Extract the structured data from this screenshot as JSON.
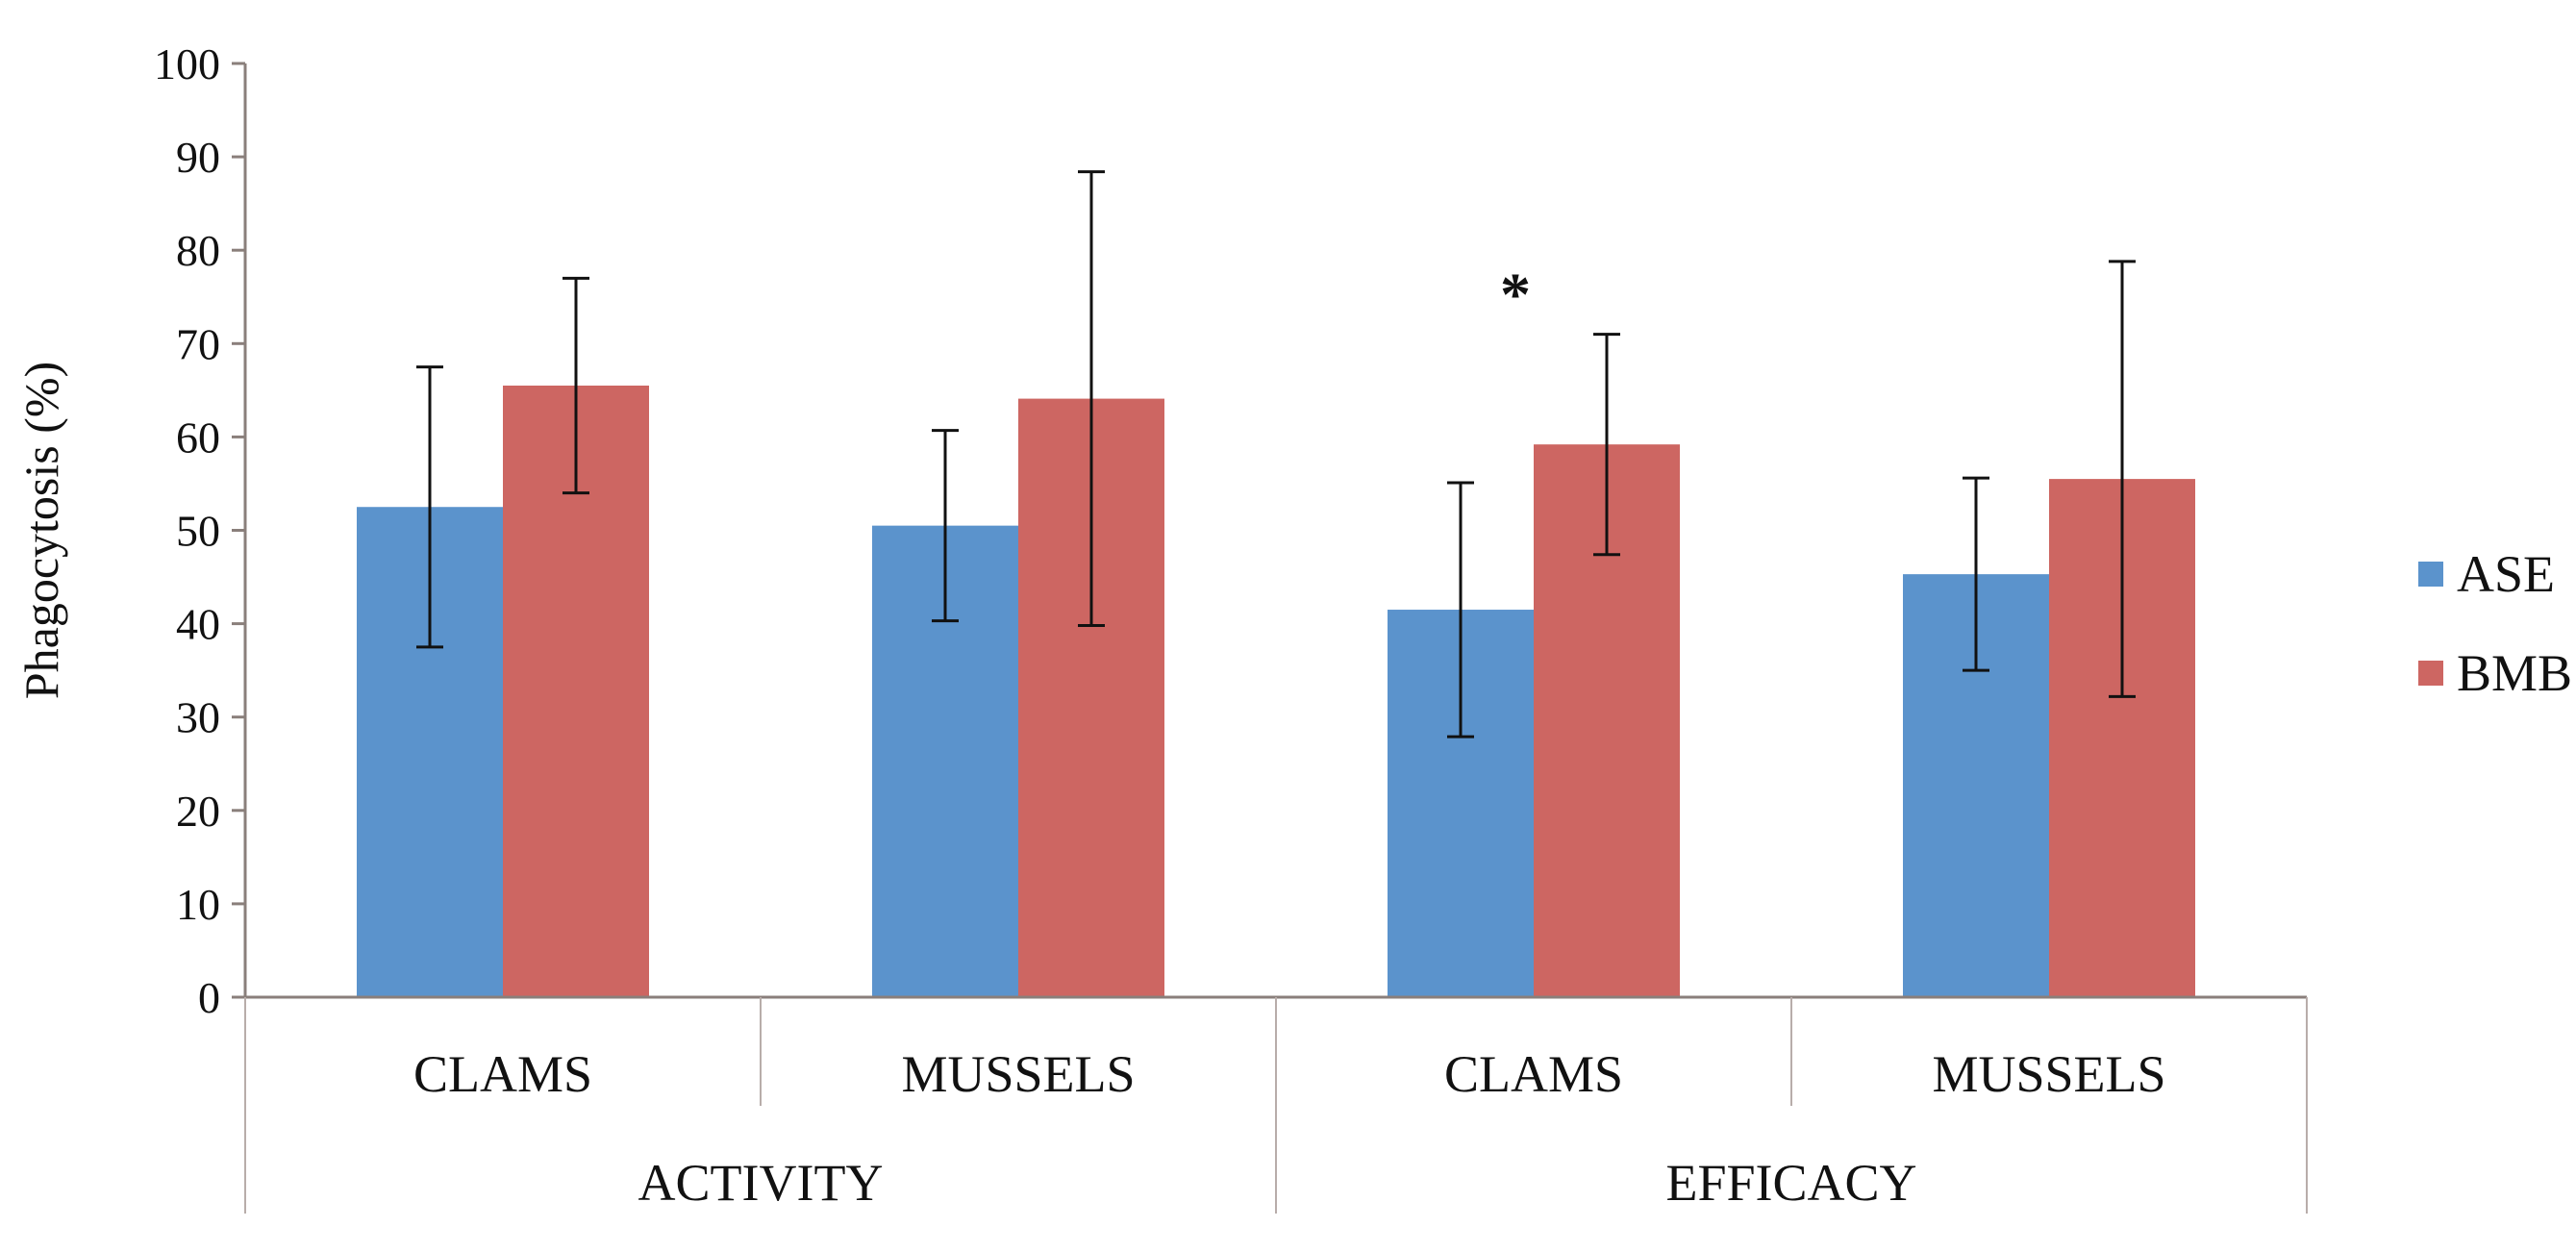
{
  "chart_data": {
    "type": "bar",
    "title": "",
    "xlabel": "",
    "ylabel": "Phagocytosis (%)",
    "ylim": [
      0,
      100
    ],
    "yticks": [
      0,
      10,
      20,
      30,
      40,
      50,
      60,
      70,
      80,
      90,
      100
    ],
    "grid": false,
    "legend_position": "right",
    "categories": [
      "CLAMS",
      "MUSSELS",
      "CLAMS",
      "MUSSELS"
    ],
    "groups": [
      {
        "label": "ACTIVITY",
        "categories": [
          0,
          1
        ]
      },
      {
        "label": "EFFICACY",
        "categories": [
          2,
          3
        ]
      }
    ],
    "series": [
      {
        "name": "ASE",
        "color": "#5b93cc",
        "values": [
          52.5,
          50.5,
          41.5,
          45.3
        ],
        "errors": [
          15,
          10.2,
          13.6,
          10.3
        ]
      },
      {
        "name": "BMB",
        "color": "#cd6662",
        "values": [
          65.5,
          64.1,
          59.2,
          55.5
        ],
        "errors": [
          11.5,
          24.3,
          11.8,
          23.3
        ]
      }
    ],
    "annotations": [
      {
        "text": "*",
        "category": 2,
        "series": "BMB"
      }
    ]
  }
}
